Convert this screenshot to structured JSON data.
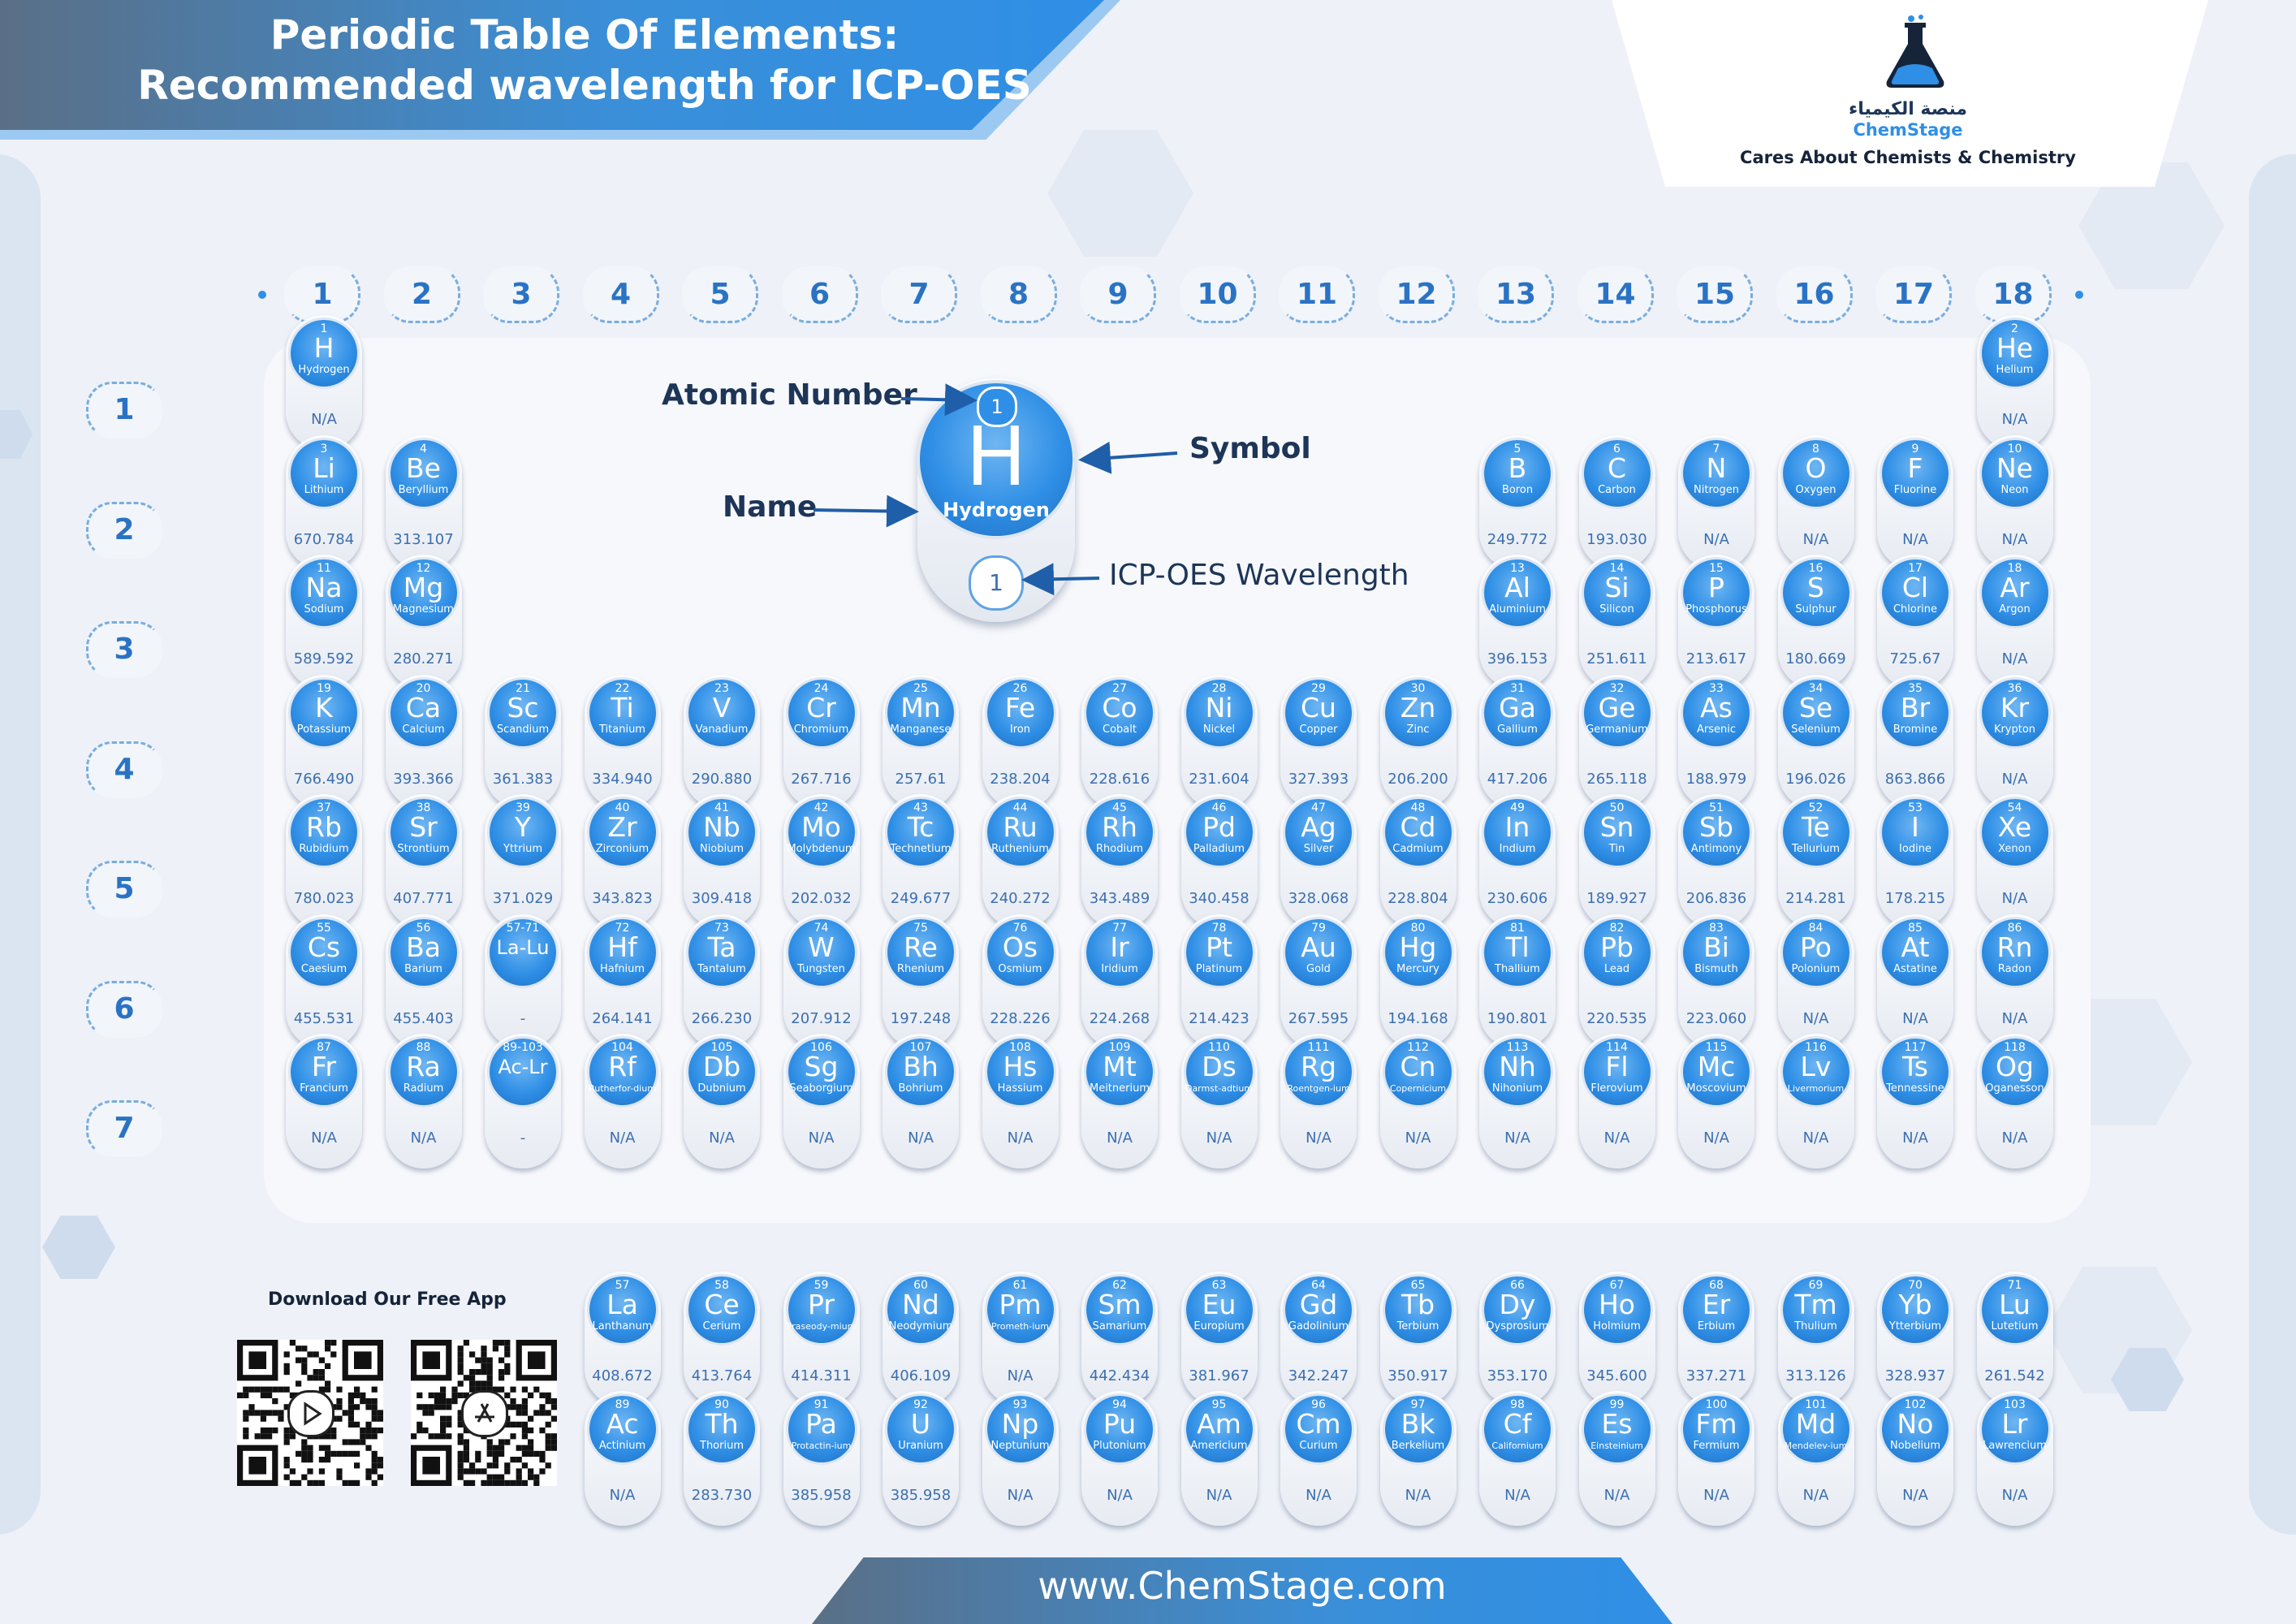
{
  "title": {
    "line1": "Periodic Table Of Elements:",
    "line2": "Recommended wavelength for ICP-OES"
  },
  "logo": {
    "arabic": "منصة الكيمياء",
    "name": "ChemStage",
    "tagline": "Cares About Chemists & Chemistry",
    "icon": "flask-logo-icon"
  },
  "colors": {
    "accent": "#2f8fe6",
    "dark": "#1d3557",
    "wavelength": "#3b6fb0"
  },
  "groups": [
    "1",
    "2",
    "3",
    "4",
    "5",
    "6",
    "7",
    "8",
    "9",
    "10",
    "11",
    "12",
    "13",
    "14",
    "15",
    "16",
    "17",
    "18"
  ],
  "periods": [
    "1",
    "2",
    "3",
    "4",
    "5",
    "6",
    "7"
  ],
  "legend": {
    "atomic_number_label": "Atomic Number",
    "symbol_label": "Symbol",
    "name_label": "Name",
    "wavelength_label": "ICP-OES Wavelength",
    "example": {
      "num": "1",
      "sym": "H",
      "name": "Hydrogen",
      "wl": "1"
    }
  },
  "elements": [
    {
      "num": "1",
      "sym": "H",
      "name": "Hydrogen",
      "wl": "N/A",
      "r": 1,
      "c": 1
    },
    {
      "num": "2",
      "sym": "He",
      "name": "Helium",
      "wl": "N/A",
      "r": 1,
      "c": 18
    },
    {
      "num": "3",
      "sym": "Li",
      "name": "Lithium",
      "wl": "670.784",
      "r": 2,
      "c": 1
    },
    {
      "num": "4",
      "sym": "Be",
      "name": "Beryllium",
      "wl": "313.107",
      "r": 2,
      "c": 2
    },
    {
      "num": "5",
      "sym": "B",
      "name": "Boron",
      "wl": "249.772",
      "r": 2,
      "c": 13
    },
    {
      "num": "6",
      "sym": "C",
      "name": "Carbon",
      "wl": "193.030",
      "r": 2,
      "c": 14
    },
    {
      "num": "7",
      "sym": "N",
      "name": "Nitrogen",
      "wl": "N/A",
      "r": 2,
      "c": 15
    },
    {
      "num": "8",
      "sym": "O",
      "name": "Oxygen",
      "wl": "N/A",
      "r": 2,
      "c": 16
    },
    {
      "num": "9",
      "sym": "F",
      "name": "Fluorine",
      "wl": "N/A",
      "r": 2,
      "c": 17
    },
    {
      "num": "10",
      "sym": "Ne",
      "name": "Neon",
      "wl": "N/A",
      "r": 2,
      "c": 18
    },
    {
      "num": "11",
      "sym": "Na",
      "name": "Sodium",
      "wl": "589.592",
      "r": 3,
      "c": 1
    },
    {
      "num": "12",
      "sym": "Mg",
      "name": "Magnesium",
      "wl": "280.271",
      "r": 3,
      "c": 2
    },
    {
      "num": "13",
      "sym": "Al",
      "name": "Aluminium",
      "wl": "396.153",
      "r": 3,
      "c": 13
    },
    {
      "num": "14",
      "sym": "Si",
      "name": "Silicon",
      "wl": "251.611",
      "r": 3,
      "c": 14
    },
    {
      "num": "15",
      "sym": "P",
      "name": "Phosphorus",
      "wl": "213.617",
      "r": 3,
      "c": 15
    },
    {
      "num": "16",
      "sym": "S",
      "name": "Sulphur",
      "wl": "180.669",
      "r": 3,
      "c": 16
    },
    {
      "num": "17",
      "sym": "Cl",
      "name": "Chlorine",
      "wl": "725.67",
      "r": 3,
      "c": 17
    },
    {
      "num": "18",
      "sym": "Ar",
      "name": "Argon",
      "wl": "N/A",
      "r": 3,
      "c": 18
    },
    {
      "num": "19",
      "sym": "K",
      "name": "Potassium",
      "wl": "766.490",
      "r": 4,
      "c": 1
    },
    {
      "num": "20",
      "sym": "Ca",
      "name": "Calcium",
      "wl": "393.366",
      "r": 4,
      "c": 2
    },
    {
      "num": "21",
      "sym": "Sc",
      "name": "Scandium",
      "wl": "361.383",
      "r": 4,
      "c": 3
    },
    {
      "num": "22",
      "sym": "Ti",
      "name": "Titanium",
      "wl": "334.940",
      "r": 4,
      "c": 4
    },
    {
      "num": "23",
      "sym": "V",
      "name": "Vanadium",
      "wl": "290.880",
      "r": 4,
      "c": 5
    },
    {
      "num": "24",
      "sym": "Cr",
      "name": "Chromium",
      "wl": "267.716",
      "r": 4,
      "c": 6
    },
    {
      "num": "25",
      "sym": "Mn",
      "name": "Manganese",
      "wl": "257.61",
      "r": 4,
      "c": 7
    },
    {
      "num": "26",
      "sym": "Fe",
      "name": "Iron",
      "wl": "238.204",
      "r": 4,
      "c": 8
    },
    {
      "num": "27",
      "sym": "Co",
      "name": "Cobalt",
      "wl": "228.616",
      "r": 4,
      "c": 9
    },
    {
      "num": "28",
      "sym": "Ni",
      "name": "Nickel",
      "wl": "231.604",
      "r": 4,
      "c": 10
    },
    {
      "num": "29",
      "sym": "Cu",
      "name": "Copper",
      "wl": "327.393",
      "r": 4,
      "c": 11
    },
    {
      "num": "30",
      "sym": "Zn",
      "name": "Zinc",
      "wl": "206.200",
      "r": 4,
      "c": 12
    },
    {
      "num": "31",
      "sym": "Ga",
      "name": "Gallium",
      "wl": "417.206",
      "r": 4,
      "c": 13
    },
    {
      "num": "32",
      "sym": "Ge",
      "name": "Germanium",
      "wl": "265.118",
      "r": 4,
      "c": 14
    },
    {
      "num": "33",
      "sym": "As",
      "name": "Arsenic",
      "wl": "188.979",
      "r": 4,
      "c": 15
    },
    {
      "num": "34",
      "sym": "Se",
      "name": "Selenium",
      "wl": "196.026",
      "r": 4,
      "c": 16
    },
    {
      "num": "35",
      "sym": "Br",
      "name": "Bromine",
      "wl": "863.866",
      "r": 4,
      "c": 17
    },
    {
      "num": "36",
      "sym": "Kr",
      "name": "Krypton",
      "wl": "N/A",
      "r": 4,
      "c": 18
    },
    {
      "num": "37",
      "sym": "Rb",
      "name": "Rubidium",
      "wl": "780.023",
      "r": 5,
      "c": 1
    },
    {
      "num": "38",
      "sym": "Sr",
      "name": "Strontium",
      "wl": "407.771",
      "r": 5,
      "c": 2
    },
    {
      "num": "39",
      "sym": "Y",
      "name": "Yttrium",
      "wl": "371.029",
      "r": 5,
      "c": 3
    },
    {
      "num": "40",
      "sym": "Zr",
      "name": "Zirconium",
      "wl": "343.823",
      "r": 5,
      "c": 4
    },
    {
      "num": "41",
      "sym": "Nb",
      "name": "Niobium",
      "wl": "309.418",
      "r": 5,
      "c": 5
    },
    {
      "num": "42",
      "sym": "Mo",
      "name": "Molybdenum",
      "wl": "202.032",
      "r": 5,
      "c": 6
    },
    {
      "num": "43",
      "sym": "Tc",
      "name": "Technetium",
      "wl": "249.677",
      "r": 5,
      "c": 7
    },
    {
      "num": "44",
      "sym": "Ru",
      "name": "Ruthenium",
      "wl": "240.272",
      "r": 5,
      "c": 8
    },
    {
      "num": "45",
      "sym": "Rh",
      "name": "Rhodium",
      "wl": "343.489",
      "r": 5,
      "c": 9
    },
    {
      "num": "46",
      "sym": "Pd",
      "name": "Palladium",
      "wl": "340.458",
      "r": 5,
      "c": 10
    },
    {
      "num": "47",
      "sym": "Ag",
      "name": "Silver",
      "wl": "328.068",
      "r": 5,
      "c": 11
    },
    {
      "num": "48",
      "sym": "Cd",
      "name": "Cadmium",
      "wl": "228.804",
      "r": 5,
      "c": 12
    },
    {
      "num": "49",
      "sym": "In",
      "name": "Indium",
      "wl": "230.606",
      "r": 5,
      "c": 13
    },
    {
      "num": "50",
      "sym": "Sn",
      "name": "Tin",
      "wl": "189.927",
      "r": 5,
      "c": 14
    },
    {
      "num": "51",
      "sym": "Sb",
      "name": "Antimony",
      "wl": "206.836",
      "r": 5,
      "c": 15
    },
    {
      "num": "52",
      "sym": "Te",
      "name": "Tellurium",
      "wl": "214.281",
      "r": 5,
      "c": 16
    },
    {
      "num": "53",
      "sym": "I",
      "name": "Iodine",
      "wl": "178.215",
      "r": 5,
      "c": 17
    },
    {
      "num": "54",
      "sym": "Xe",
      "name": "Xenon",
      "wl": "N/A",
      "r": 5,
      "c": 18
    },
    {
      "num": "55",
      "sym": "Cs",
      "name": "Caesium",
      "wl": "455.531",
      "r": 6,
      "c": 1
    },
    {
      "num": "56",
      "sym": "Ba",
      "name": "Barium",
      "wl": "455.403",
      "r": 6,
      "c": 2
    },
    {
      "num": "57-71",
      "sym": "La-Lu",
      "name": "",
      "wl": "-",
      "r": 6,
      "c": 3
    },
    {
      "num": "72",
      "sym": "Hf",
      "name": "Hafnium",
      "wl": "264.141",
      "r": 6,
      "c": 4
    },
    {
      "num": "73",
      "sym": "Ta",
      "name": "Tantalum",
      "wl": "266.230",
      "r": 6,
      "c": 5
    },
    {
      "num": "74",
      "sym": "W",
      "name": "Tungsten",
      "wl": "207.912",
      "r": 6,
      "c": 6
    },
    {
      "num": "75",
      "sym": "Re",
      "name": "Rhenium",
      "wl": "197.248",
      "r": 6,
      "c": 7
    },
    {
      "num": "76",
      "sym": "Os",
      "name": "Osmium",
      "wl": "228.226",
      "r": 6,
      "c": 8
    },
    {
      "num": "77",
      "sym": "Ir",
      "name": "Iridium",
      "wl": "224.268",
      "r": 6,
      "c": 9
    },
    {
      "num": "78",
      "sym": "Pt",
      "name": "Platinum",
      "wl": "214.423",
      "r": 6,
      "c": 10
    },
    {
      "num": "79",
      "sym": "Au",
      "name": "Gold",
      "wl": "267.595",
      "r": 6,
      "c": 11
    },
    {
      "num": "80",
      "sym": "Hg",
      "name": "Mercury",
      "wl": "194.168",
      "r": 6,
      "c": 12
    },
    {
      "num": "81",
      "sym": "Tl",
      "name": "Thallium",
      "wl": "190.801",
      "r": 6,
      "c": 13
    },
    {
      "num": "82",
      "sym": "Pb",
      "name": "Lead",
      "wl": "220.535",
      "r": 6,
      "c": 14
    },
    {
      "num": "83",
      "sym": "Bi",
      "name": "Bismuth",
      "wl": "223.060",
      "r": 6,
      "c": 15
    },
    {
      "num": "84",
      "sym": "Po",
      "name": "Polonium",
      "wl": "N/A",
      "r": 6,
      "c": 16
    },
    {
      "num": "85",
      "sym": "At",
      "name": "Astatine",
      "wl": "N/A",
      "r": 6,
      "c": 17
    },
    {
      "num": "86",
      "sym": "Rn",
      "name": "Radon",
      "wl": "N/A",
      "r": 6,
      "c": 18
    },
    {
      "num": "87",
      "sym": "Fr",
      "name": "Francium",
      "wl": "N/A",
      "r": 7,
      "c": 1
    },
    {
      "num": "88",
      "sym": "Ra",
      "name": "Radium",
      "wl": "N/A",
      "r": 7,
      "c": 2
    },
    {
      "num": "89-103",
      "sym": "Ac-Lr",
      "name": "",
      "wl": "-",
      "r": 7,
      "c": 3
    },
    {
      "num": "104",
      "sym": "Rf",
      "name": "Rutherfor-dium",
      "wl": "N/A",
      "r": 7,
      "c": 4
    },
    {
      "num": "105",
      "sym": "Db",
      "name": "Dubnium",
      "wl": "N/A",
      "r": 7,
      "c": 5
    },
    {
      "num": "106",
      "sym": "Sg",
      "name": "Seaborgium",
      "wl": "N/A",
      "r": 7,
      "c": 6
    },
    {
      "num": "107",
      "sym": "Bh",
      "name": "Bohrium",
      "wl": "N/A",
      "r": 7,
      "c": 7
    },
    {
      "num": "108",
      "sym": "Hs",
      "name": "Hassium",
      "wl": "N/A",
      "r": 7,
      "c": 8
    },
    {
      "num": "109",
      "sym": "Mt",
      "name": "Meitnerium",
      "wl": "N/A",
      "r": 7,
      "c": 9
    },
    {
      "num": "110",
      "sym": "Ds",
      "name": "Darmst-adtium",
      "wl": "N/A",
      "r": 7,
      "c": 10
    },
    {
      "num": "111",
      "sym": "Rg",
      "name": "Roentgen-ium",
      "wl": "N/A",
      "r": 7,
      "c": 11
    },
    {
      "num": "112",
      "sym": "Cn",
      "name": "Copernicium",
      "wl": "N/A",
      "r": 7,
      "c": 12
    },
    {
      "num": "113",
      "sym": "Nh",
      "name": "Nihonium",
      "wl": "N/A",
      "r": 7,
      "c": 13
    },
    {
      "num": "114",
      "sym": "Fl",
      "name": "Flerovium",
      "wl": "N/A",
      "r": 7,
      "c": 14
    },
    {
      "num": "115",
      "sym": "Mc",
      "name": "Moscovium",
      "wl": "N/A",
      "r": 7,
      "c": 15
    },
    {
      "num": "116",
      "sym": "Lv",
      "name": "Livermorium",
      "wl": "N/A",
      "r": 7,
      "c": 16
    },
    {
      "num": "117",
      "sym": "Ts",
      "name": "Tennessine",
      "wl": "N/A",
      "r": 7,
      "c": 17
    },
    {
      "num": "118",
      "sym": "Og",
      "name": "Oganesson",
      "wl": "N/A",
      "r": 7,
      "c": 18
    },
    {
      "num": "57",
      "sym": "La",
      "name": "Lanthanum",
      "wl": "408.672",
      "r": 9,
      "c": 4
    },
    {
      "num": "58",
      "sym": "Ce",
      "name": "Cerium",
      "wl": "413.764",
      "r": 9,
      "c": 5
    },
    {
      "num": "59",
      "sym": "Pr",
      "name": "Praseody-mium",
      "wl": "414.311",
      "r": 9,
      "c": 6
    },
    {
      "num": "60",
      "sym": "Nd",
      "name": "Neodymium",
      "wl": "406.109",
      "r": 9,
      "c": 7
    },
    {
      "num": "61",
      "sym": "Pm",
      "name": "Prometh-ium",
      "wl": "N/A",
      "r": 9,
      "c": 8
    },
    {
      "num": "62",
      "sym": "Sm",
      "name": "Samarium",
      "wl": "442.434",
      "r": 9,
      "c": 9
    },
    {
      "num": "63",
      "sym": "Eu",
      "name": "Europium",
      "wl": "381.967",
      "r": 9,
      "c": 10
    },
    {
      "num": "64",
      "sym": "Gd",
      "name": "Gadolinium",
      "wl": "342.247",
      "r": 9,
      "c": 11
    },
    {
      "num": "65",
      "sym": "Tb",
      "name": "Terbium",
      "wl": "350.917",
      "r": 9,
      "c": 12
    },
    {
      "num": "66",
      "sym": "Dy",
      "name": "Dysprosium",
      "wl": "353.170",
      "r": 9,
      "c": 13
    },
    {
      "num": "67",
      "sym": "Ho",
      "name": "Holmium",
      "wl": "345.600",
      "r": 9,
      "c": 14
    },
    {
      "num": "68",
      "sym": "Er",
      "name": "Erbium",
      "wl": "337.271",
      "r": 9,
      "c": 15
    },
    {
      "num": "69",
      "sym": "Tm",
      "name": "Thulium",
      "wl": "313.126",
      "r": 9,
      "c": 16
    },
    {
      "num": "70",
      "sym": "Yb",
      "name": "Ytterbium",
      "wl": "328.937",
      "r": 9,
      "c": 17
    },
    {
      "num": "71",
      "sym": "Lu",
      "name": "Lutetium",
      "wl": "261.542",
      "r": 9,
      "c": 18
    },
    {
      "num": "89",
      "sym": "Ac",
      "name": "Actinium",
      "wl": "N/A",
      "r": 10,
      "c": 4
    },
    {
      "num": "90",
      "sym": "Th",
      "name": "Thorium",
      "wl": "283.730",
      "r": 10,
      "c": 5
    },
    {
      "num": "91",
      "sym": "Pa",
      "name": "Protactin-ium",
      "wl": "385.958",
      "r": 10,
      "c": 6
    },
    {
      "num": "92",
      "sym": "U",
      "name": "Uranium",
      "wl": "385.958",
      "r": 10,
      "c": 7
    },
    {
      "num": "93",
      "sym": "Np",
      "name": "Neptunium",
      "wl": "N/A",
      "r": 10,
      "c": 8
    },
    {
      "num": "94",
      "sym": "Pu",
      "name": "Plutonium",
      "wl": "N/A",
      "r": 10,
      "c": 9
    },
    {
      "num": "95",
      "sym": "Am",
      "name": "Americium",
      "wl": "N/A",
      "r": 10,
      "c": 10
    },
    {
      "num": "96",
      "sym": "Cm",
      "name": "Curium",
      "wl": "N/A",
      "r": 10,
      "c": 11
    },
    {
      "num": "97",
      "sym": "Bk",
      "name": "Berkelium",
      "wl": "N/A",
      "r": 10,
      "c": 12
    },
    {
      "num": "98",
      "sym": "Cf",
      "name": "Californium",
      "wl": "N/A",
      "r": 10,
      "c": 13
    },
    {
      "num": "99",
      "sym": "Es",
      "name": "Einsteinium",
      "wl": "N/A",
      "r": 10,
      "c": 14
    },
    {
      "num": "100",
      "sym": "Fm",
      "name": "Fermium",
      "wl": "N/A",
      "r": 10,
      "c": 15
    },
    {
      "num": "101",
      "sym": "Md",
      "name": "Mendelev-ium",
      "wl": "N/A",
      "r": 10,
      "c": 16
    },
    {
      "num": "102",
      "sym": "No",
      "name": "Nobelium",
      "wl": "N/A",
      "r": 10,
      "c": 17
    },
    {
      "num": "103",
      "sym": "Lr",
      "name": "Lawrencium",
      "wl": "N/A",
      "r": 10,
      "c": 18
    }
  ],
  "app": {
    "title": "Download Our Free App",
    "android_icon": "play-store-icon",
    "ios_icon": "app-store-icon"
  },
  "footer": {
    "url": "www.ChemStage.com"
  }
}
